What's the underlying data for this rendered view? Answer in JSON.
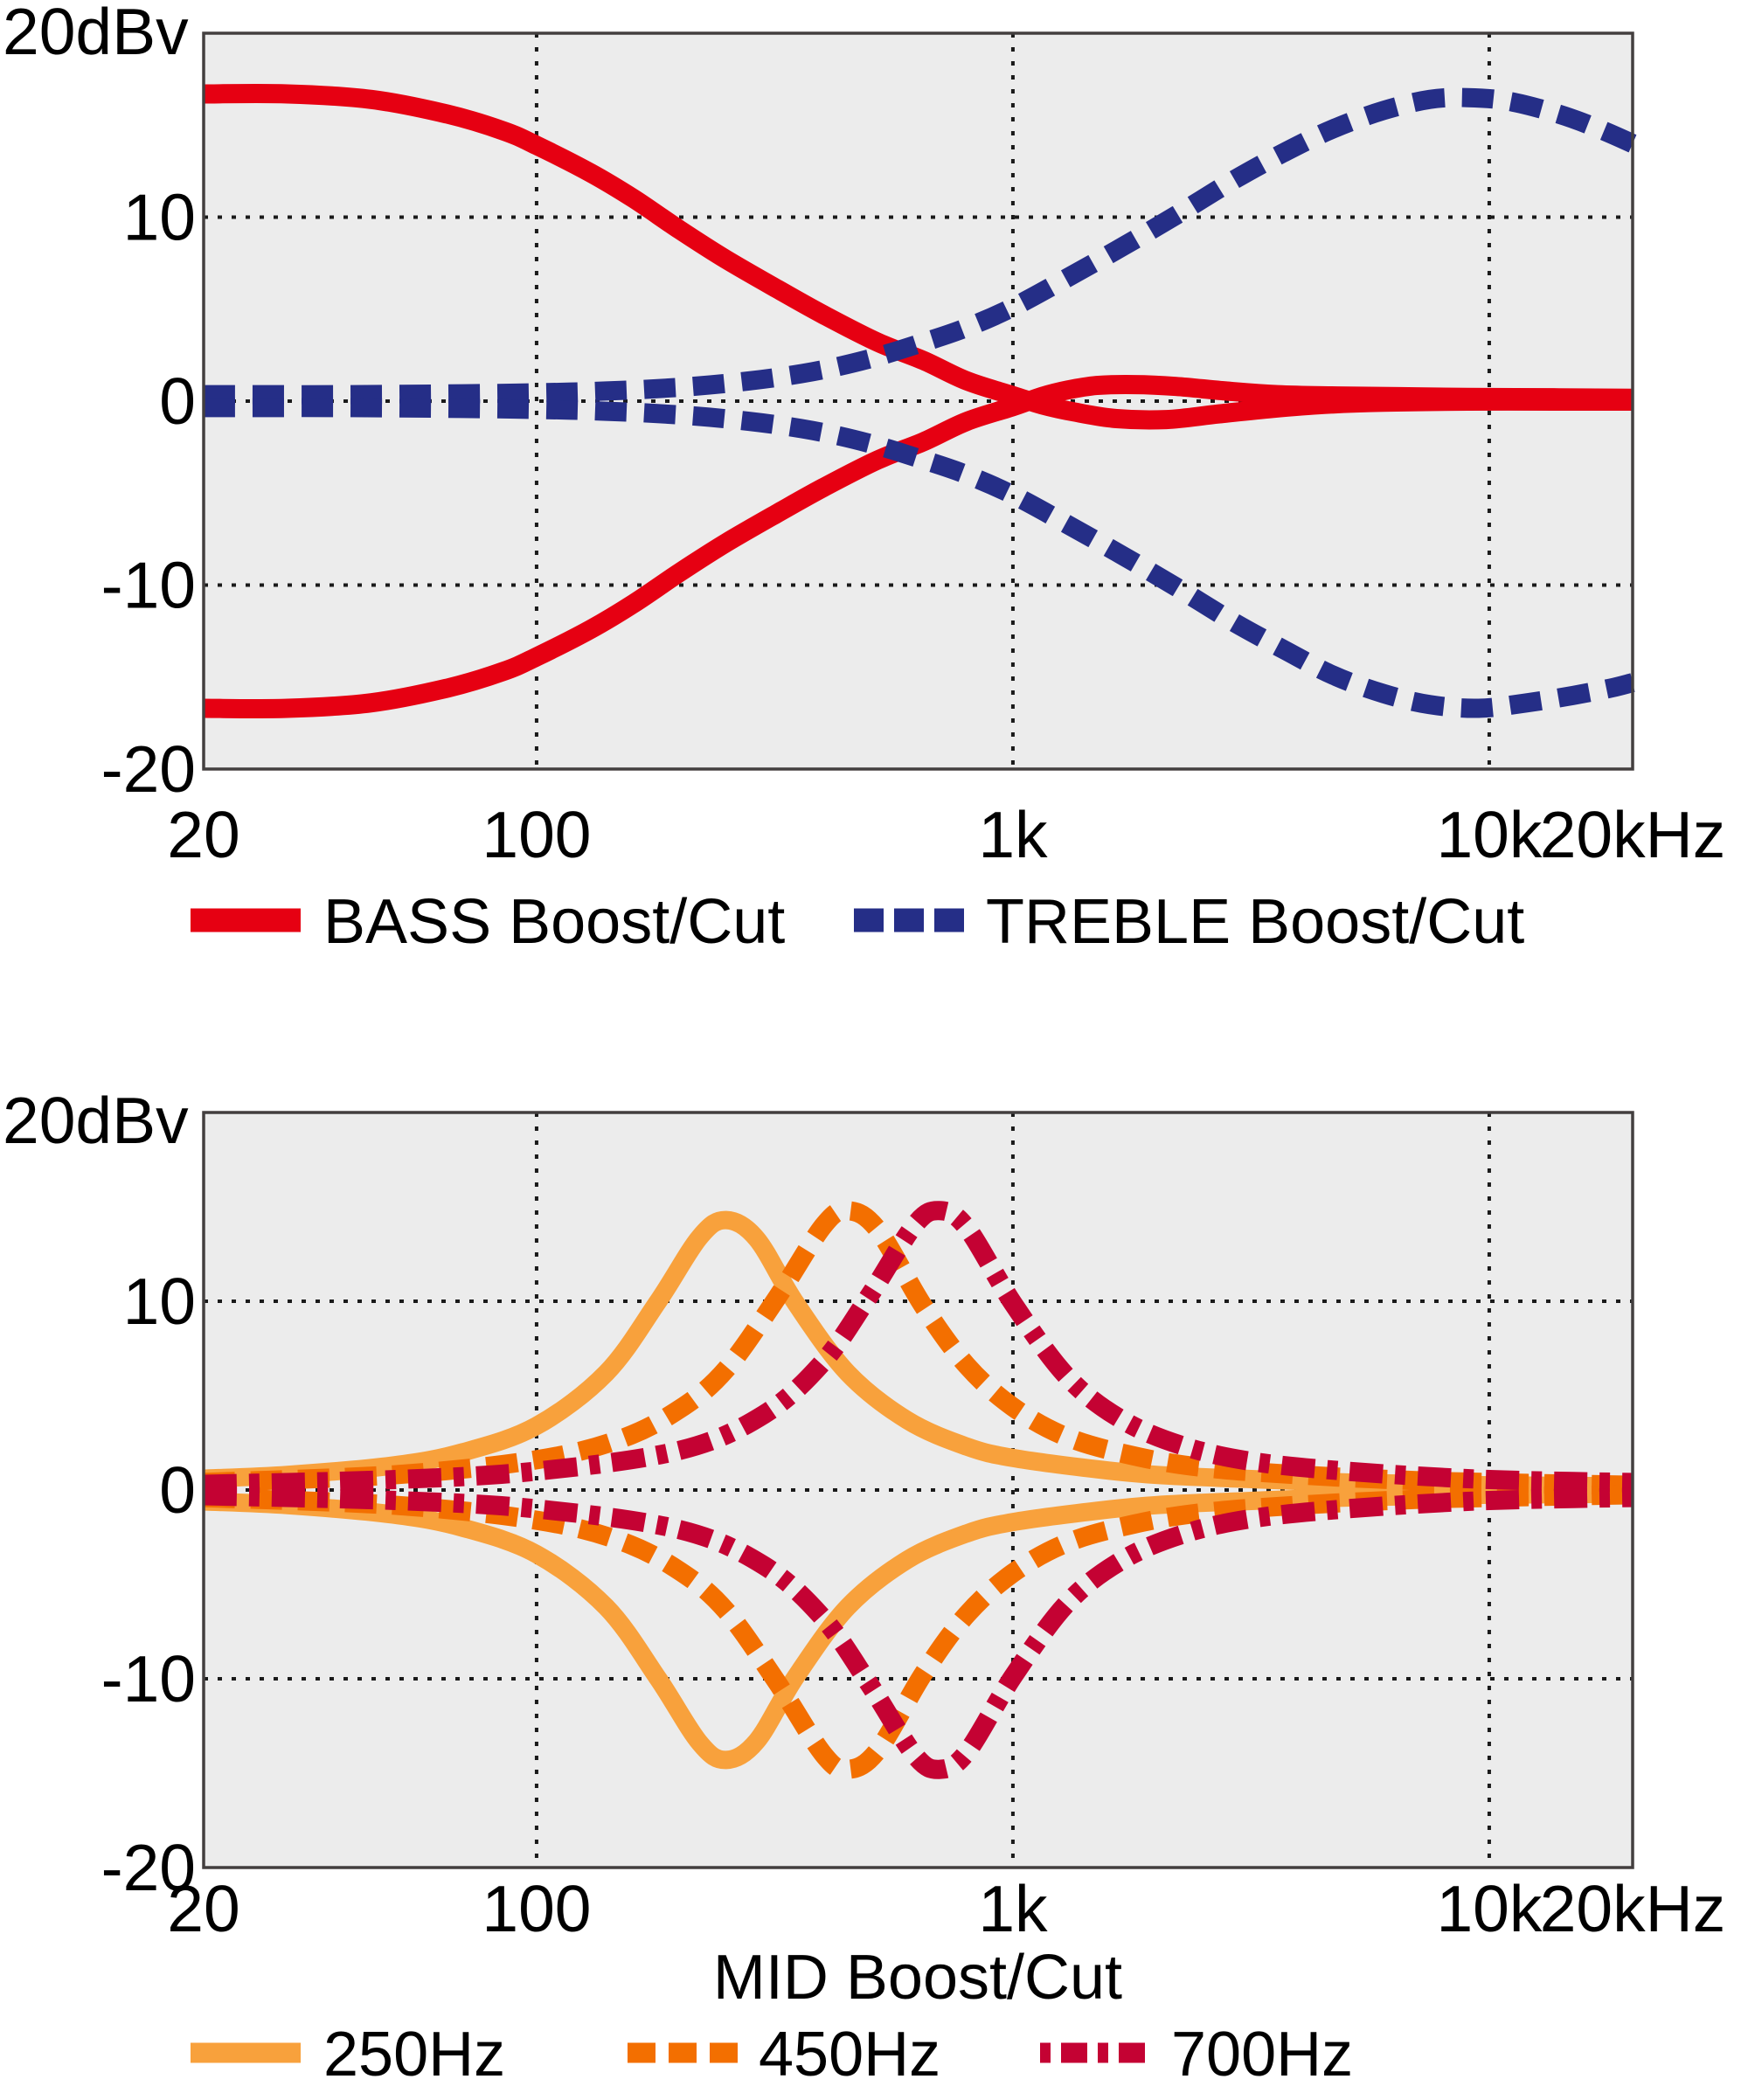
{
  "palette": {
    "background": "#ffffff",
    "plot_background": "#ececec",
    "grid": "#1a1a1a",
    "border": "#433f3f",
    "text": "#000000"
  },
  "chart_data": [
    {
      "type": "line",
      "unit_label": "20dBv",
      "x_axis": {
        "scale": "log",
        "min_hz": 20,
        "max_hz": 20000,
        "ticks": [
          {
            "hz": 20,
            "label": "20"
          },
          {
            "hz": 100,
            "label": "100"
          },
          {
            "hz": 1000,
            "label": "1k"
          },
          {
            "hz": 10000,
            "label": "10k"
          },
          {
            "hz": 20000,
            "label": "20kHz"
          }
        ],
        "grid_hz": [
          100,
          1000,
          10000
        ]
      },
      "y_axis": {
        "unit": "dBv",
        "min_db": -20,
        "max_db": 20,
        "ticks": [
          {
            "db": 10,
            "label": "10"
          },
          {
            "db": 0,
            "label": "0"
          },
          {
            "db": -10,
            "label": "-10"
          },
          {
            "db": -20,
            "label": "-20"
          }
        ],
        "grid_db": [
          10,
          0,
          -10
        ]
      },
      "series": [
        {
          "name": "BASS Boost/Cut",
          "color": "#e60012",
          "line_style": "solid",
          "stroke_width": 22,
          "dash": null,
          "legend": {
            "width": 27,
            "dash": null
          },
          "curves": {
            "boost": [
              [
                20,
                16.7
              ],
              [
                30,
                16.7
              ],
              [
                45,
                16.4
              ],
              [
                65,
                15.6
              ],
              [
                85,
                14.7
              ],
              [
                100,
                13.9
              ],
              [
                130,
                12.4
              ],
              [
                160,
                11.0
              ],
              [
                200,
                9.3
              ],
              [
                250,
                7.7
              ],
              [
                320,
                6.1
              ],
              [
                400,
                4.7
              ],
              [
                520,
                3.2
              ],
              [
                650,
                2.2
              ],
              [
                800,
                1.1
              ],
              [
                1000,
                0.3
              ],
              [
                1150,
                -0.2
              ],
              [
                1350,
                -0.6
              ],
              [
                1650,
                -0.95
              ],
              [
                2100,
                -1.0
              ],
              [
                2700,
                -0.7
              ],
              [
                3500,
                -0.4
              ],
              [
                4500,
                -0.18
              ],
              [
                6000,
                -0.06
              ],
              [
                9000,
                0
              ],
              [
                14000,
                0
              ],
              [
                20000,
                0
              ]
            ],
            "cut": [
              [
                20,
                -16.7
              ],
              [
                30,
                -16.7
              ],
              [
                45,
                -16.4
              ],
              [
                65,
                -15.6
              ],
              [
                85,
                -14.7
              ],
              [
                100,
                -13.9
              ],
              [
                130,
                -12.4
              ],
              [
                160,
                -11.0
              ],
              [
                200,
                -9.3
              ],
              [
                250,
                -7.7
              ],
              [
                320,
                -6.1
              ],
              [
                400,
                -4.7
              ],
              [
                520,
                -3.2
              ],
              [
                650,
                -2.2
              ],
              [
                800,
                -1.1
              ],
              [
                1000,
                -0.3
              ],
              [
                1150,
                0.25
              ],
              [
                1300,
                0.6
              ],
              [
                1500,
                0.85
              ],
              [
                1800,
                0.9
              ],
              [
                2200,
                0.8
              ],
              [
                2800,
                0.55
              ],
              [
                3600,
                0.35
              ],
              [
                4800,
                0.28
              ],
              [
                6500,
                0.24
              ],
              [
                9000,
                0.2
              ],
              [
                14000,
                0.18
              ],
              [
                20000,
                0.15
              ]
            ]
          }
        },
        {
          "name": "TREBLE Boost/Cut",
          "color": "#252e87",
          "line_style": "dashed",
          "stroke_width": 22,
          "dash": [
            36,
            20
          ],
          "legend": {
            "width": 27,
            "dash": [
              34,
              12
            ]
          },
          "curves": {
            "boost": [
              [
                20,
                0.35
              ],
              [
                40,
                0.35
              ],
              [
                70,
                0.4
              ],
              [
                100,
                0.45
              ],
              [
                140,
                0.55
              ],
              [
                200,
                0.75
              ],
              [
                280,
                1.1
              ],
              [
                380,
                1.6
              ],
              [
                500,
                2.3
              ],
              [
                650,
                3.2
              ],
              [
                800,
                4.0
              ],
              [
                1000,
                5.1
              ],
              [
                1300,
                6.7
              ],
              [
                1700,
                8.4
              ],
              [
                2200,
                10.1
              ],
              [
                2900,
                12.0
              ],
              [
                3700,
                13.5
              ],
              [
                4700,
                14.8
              ],
              [
                6000,
                15.8
              ],
              [
                7500,
                16.4
              ],
              [
                9000,
                16.5
              ],
              [
                11000,
                16.3
              ],
              [
                14000,
                15.6
              ],
              [
                17000,
                14.8
              ],
              [
                20000,
                14.0
              ]
            ],
            "cut": [
              [
                20,
                -0.35
              ],
              [
                40,
                -0.35
              ],
              [
                70,
                -0.4
              ],
              [
                100,
                -0.45
              ],
              [
                140,
                -0.55
              ],
              [
                200,
                -0.75
              ],
              [
                280,
                -1.1
              ],
              [
                380,
                -1.6
              ],
              [
                500,
                -2.3
              ],
              [
                650,
                -3.2
              ],
              [
                800,
                -4.0
              ],
              [
                1000,
                -5.1
              ],
              [
                1300,
                -6.7
              ],
              [
                1700,
                -8.4
              ],
              [
                2200,
                -10.1
              ],
              [
                2900,
                -12.0
              ],
              [
                3700,
                -13.5
              ],
              [
                4700,
                -14.9
              ],
              [
                6000,
                -15.9
              ],
              [
                7500,
                -16.5
              ],
              [
                9500,
                -16.7
              ],
              [
                12000,
                -16.4
              ],
              [
                15000,
                -16.0
              ],
              [
                18000,
                -15.6
              ],
              [
                20000,
                -15.3
              ]
            ]
          }
        }
      ]
    },
    {
      "type": "line",
      "unit_label": "20dBv",
      "title": "MID Boost/Cut",
      "x_axis": {
        "scale": "log",
        "min_hz": 20,
        "max_hz": 20000,
        "ticks": [
          {
            "hz": 20,
            "label": "20"
          },
          {
            "hz": 100,
            "label": "100"
          },
          {
            "hz": 1000,
            "label": "1k"
          },
          {
            "hz": 10000,
            "label": "10k"
          },
          {
            "hz": 20000,
            "label": "20kHz"
          }
        ],
        "grid_hz": [
          100,
          1000,
          10000
        ]
      },
      "y_axis": {
        "unit": "dBv",
        "min_db": -20,
        "max_db": 20,
        "ticks": [
          {
            "db": 10,
            "label": "10"
          },
          {
            "db": 0,
            "label": "0"
          },
          {
            "db": -10,
            "label": "-10"
          },
          {
            "db": -20,
            "label": "-20"
          }
        ],
        "grid_db": [
          10,
          0,
          -10
        ]
      },
      "series": [
        {
          "name": "250Hz",
          "color": "#f8a13c",
          "line_style": "solid",
          "stroke_width": 21,
          "dash": null,
          "legend": {
            "width": 23,
            "dash": null
          },
          "cut_is_mirror": true,
          "curves": {
            "boost": [
              [
                20,
                0.6
              ],
              [
                30,
                0.8
              ],
              [
                50,
                1.3
              ],
              [
                70,
                2.0
              ],
              [
                100,
                3.4
              ],
              [
                140,
                6.2
              ],
              [
                180,
                10.0
              ],
              [
                220,
                13.4
              ],
              [
                250,
                14.3
              ],
              [
                290,
                13.3
              ],
              [
                350,
                9.9
              ],
              [
                450,
                6.2
              ],
              [
                600,
                3.7
              ],
              [
                800,
                2.3
              ],
              [
                1000,
                1.7
              ],
              [
                1500,
                1.1
              ],
              [
                2000,
                0.8
              ],
              [
                3000,
                0.6
              ],
              [
                5000,
                0.4
              ],
              [
                10000,
                0.25
              ],
              [
                20000,
                0.2
              ]
            ]
          }
        },
        {
          "name": "450Hz",
          "color": "#f36f00",
          "line_style": "dashed",
          "stroke_width": 22,
          "dash": [
            36,
            18
          ],
          "legend": {
            "width": 23,
            "dash": [
              32,
              15
            ]
          },
          "cut_is_mirror": true,
          "curves": {
            "boost": [
              [
                20,
                0.4
              ],
              [
                50,
                0.8
              ],
              [
                100,
                1.6
              ],
              [
                150,
                2.7
              ],
              [
                200,
                4.3
              ],
              [
                250,
                6.4
              ],
              [
                320,
                10.2
              ],
              [
                400,
                14.0
              ],
              [
                450,
                14.8
              ],
              [
                520,
                13.8
              ],
              [
                650,
                9.7
              ],
              [
                800,
                6.6
              ],
              [
                1000,
                4.4
              ],
              [
                1300,
                2.8
              ],
              [
                1800,
                1.8
              ],
              [
                2500,
                1.2
              ],
              [
                4000,
                0.8
              ],
              [
                7000,
                0.5
              ],
              [
                12000,
                0.35
              ],
              [
                20000,
                0.25
              ]
            ]
          }
        },
        {
          "name": "700Hz",
          "color": "#c40233",
          "line_style": "dash-dot",
          "stroke_width": 22,
          "dash": [
            38,
            14,
            12,
            14
          ],
          "legend": {
            "width": 23,
            "dash": [
              12,
              12,
              30,
              12
            ]
          },
          "cut_is_mirror": true,
          "curves": {
            "boost": [
              [
                20,
                0.3
              ],
              [
                50,
                0.55
              ],
              [
                100,
                1.0
              ],
              [
                200,
                2.1
              ],
              [
                300,
                4.0
              ],
              [
                400,
                6.8
              ],
              [
                500,
                10.3
              ],
              [
                620,
                14.0
              ],
              [
                700,
                14.8
              ],
              [
                800,
                13.9
              ],
              [
                1000,
                9.9
              ],
              [
                1300,
                6.0
              ],
              [
                1700,
                3.7
              ],
              [
                2300,
                2.3
              ],
              [
                3200,
                1.5
              ],
              [
                5000,
                1.0
              ],
              [
                9000,
                0.6
              ],
              [
                15000,
                0.45
              ],
              [
                20000,
                0.4
              ]
            ]
          }
        }
      ]
    }
  ]
}
